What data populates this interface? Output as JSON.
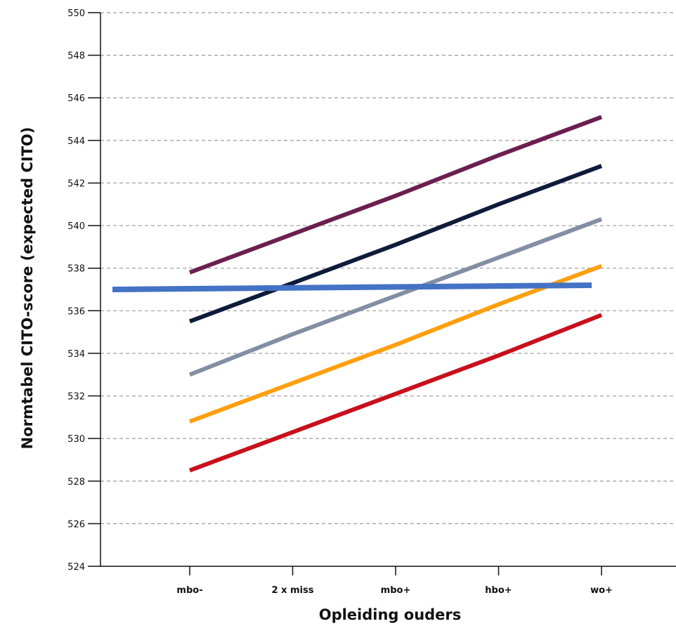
{
  "chart_data": {
    "type": "line",
    "xlabel": "Opleiding ouders",
    "ylabel": "Normtabel CITO-score (expected CITO)",
    "categories": [
      "mbo-",
      "2 x miss",
      "mbo+",
      "hbo+",
      "wo+"
    ],
    "ylim": [
      524,
      550
    ],
    "yticks": [
      524,
      526,
      528,
      530,
      532,
      534,
      536,
      538,
      540,
      542,
      544,
      546,
      548,
      550
    ],
    "grid": "horizontal dashed",
    "legend": "none",
    "series": [
      {
        "color": "#6b1f4f",
        "values": [
          537.8,
          539.6,
          541.4,
          543.3,
          545.1
        ]
      },
      {
        "color": "#0f1b3a",
        "values": [
          535.5,
          537.3,
          539.1,
          541.0,
          542.8
        ]
      },
      {
        "color": "#848ea3",
        "values": [
          533.0,
          534.9,
          536.7,
          538.5,
          540.3
        ]
      },
      {
        "color": "#ff9f0f",
        "values": [
          530.8,
          532.6,
          534.4,
          536.3,
          538.1
        ]
      },
      {
        "color": "#c8101c",
        "values": [
          528.5,
          530.3,
          532.1,
          533.9,
          535.8
        ]
      }
    ],
    "reference_line": {
      "color": "#4472c4",
      "values": [
        537.0,
        537.2
      ]
    }
  }
}
